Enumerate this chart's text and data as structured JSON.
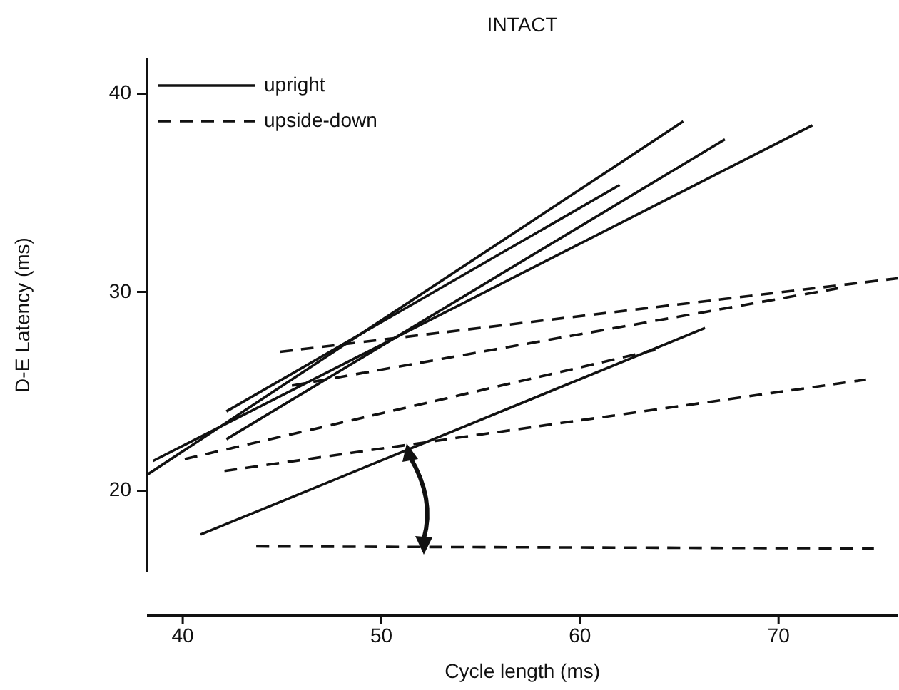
{
  "chart_data": {
    "type": "line",
    "title": "INTACT",
    "xlabel": "Cycle length (ms)",
    "ylabel": "D-E Latency (ms)",
    "xlim": [
      38.2,
      76
    ],
    "xticks": [
      40,
      50,
      60,
      70
    ],
    "ylim": [
      16,
      41.7
    ],
    "yticks": [
      20,
      30,
      40
    ],
    "grid": false,
    "legend": "top left",
    "marker": "none",
    "series": [
      {
        "name": "upright",
        "color": "#111111",
        "line_style": "solid",
        "x": [
          38.2,
          65.2
        ],
        "values": [
          20.8,
          38.6
        ]
      },
      {
        "color": "#111111",
        "line_style": "solid",
        "x": [
          38.5,
          71.7
        ],
        "values": [
          21.5,
          38.4
        ]
      },
      {
        "color": "#111111",
        "line_style": "solid",
        "x": [
          42.2,
          67.3
        ],
        "values": [
          22.6,
          37.7
        ]
      },
      {
        "color": "#111111",
        "line_style": "solid",
        "x": [
          42.2,
          62.0
        ],
        "values": [
          24.0,
          35.4
        ]
      },
      {
        "color": "#111111",
        "line_style": "solid",
        "x": [
          40.9,
          66.3
        ],
        "values": [
          17.8,
          28.2
        ]
      },
      {
        "name": "upside-down",
        "color": "#111111",
        "line_style": "dashed",
        "x": [
          44.9,
          76.0
        ],
        "values": [
          27.0,
          30.7
        ]
      },
      {
        "color": "#111111",
        "line_style": "dashed",
        "x": [
          45.5,
          73.0
        ],
        "values": [
          25.3,
          30.2
        ]
      },
      {
        "color": "#111111",
        "line_style": "dashed",
        "x": [
          40.1,
          63.8
        ],
        "values": [
          21.6,
          27.1
        ]
      },
      {
        "color": "#111111",
        "line_style": "dashed",
        "x": [
          42.1,
          74.4
        ],
        "values": [
          21.0,
          25.6
        ]
      },
      {
        "color": "#111111",
        "line_style": "dashed",
        "x": [
          43.7,
          74.8
        ],
        "values": [
          17.2,
          17.1
        ]
      }
    ]
  }
}
